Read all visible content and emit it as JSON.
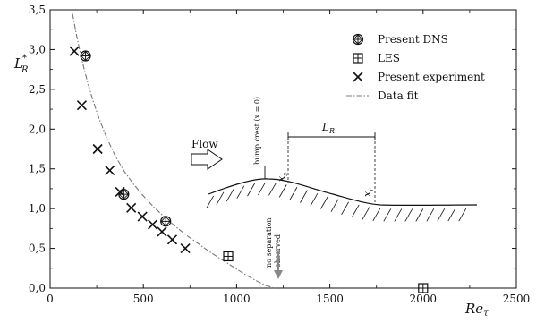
{
  "chart_data": {
    "type": "scatter",
    "xlabel": "Re",
    "xlabel_sub": "τ",
    "ylabel": "L",
    "ylabel_sub": "R",
    "ylabel_sup": "*",
    "xlim": [
      0,
      2500
    ],
    "ylim": [
      0,
      3.5
    ],
    "x_ticks": [
      0,
      500,
      1000,
      1500,
      2000,
      2500
    ],
    "y_ticks": [
      0,
      0.5,
      1.0,
      1.5,
      2.0,
      2.5,
      3.0,
      3.5
    ],
    "x_tick_labels": [
      "0",
      "500",
      "1000",
      "1500",
      "2000",
      "2500"
    ],
    "y_tick_labels": [
      "0,0",
      "0,5",
      "1,0",
      "1,5",
      "2,0",
      "2,5",
      "3,0",
      "3,5"
    ],
    "grid": false,
    "legend_position": "top-right",
    "series": [
      {
        "name": "Present DNS",
        "marker": "circle-plus",
        "x": [
          190,
          395,
          620
        ],
        "y": [
          2.92,
          1.18,
          0.84
        ]
      },
      {
        "name": "LES",
        "marker": "square-plus",
        "x": [
          955,
          2000
        ],
        "y": [
          0.4,
          0.0
        ]
      },
      {
        "name": "Present experiment",
        "marker": "x",
        "x": [
          130,
          170,
          255,
          320,
          375,
          435,
          495,
          550,
          600,
          655,
          725
        ],
        "y": [
          2.98,
          2.3,
          1.75,
          1.48,
          1.21,
          1.01,
          0.9,
          0.8,
          0.71,
          0.61,
          0.5
        ]
      },
      {
        "name": "Data fit",
        "style": "dash-dot",
        "x": [
          120,
          140,
          160,
          180,
          200,
          230,
          260,
          300,
          350,
          400,
          450,
          500,
          560,
          620,
          680,
          740,
          800,
          860,
          920,
          980,
          1040,
          1100,
          1150,
          1200
        ],
        "y": [
          3.45,
          3.2,
          2.98,
          2.78,
          2.6,
          2.36,
          2.15,
          1.91,
          1.66,
          1.46,
          1.3,
          1.16,
          1.01,
          0.88,
          0.76,
          0.65,
          0.55,
          0.45,
          0.36,
          0.27,
          0.18,
          0.1,
          0.04,
          0.0
        ]
      }
    ],
    "annotations": {
      "flow_label": "Flow",
      "bump_crest_label": "bump crest (x = 0)",
      "separation_length_label_main": "L",
      "separation_length_label_sub": "R",
      "separation_point_main": "x",
      "separation_point_sub": "s",
      "reattachment_point_main": "x",
      "reattachment_point_sub": "r",
      "no_separation_line1": "no separation",
      "no_separation_line2": "observed"
    }
  }
}
